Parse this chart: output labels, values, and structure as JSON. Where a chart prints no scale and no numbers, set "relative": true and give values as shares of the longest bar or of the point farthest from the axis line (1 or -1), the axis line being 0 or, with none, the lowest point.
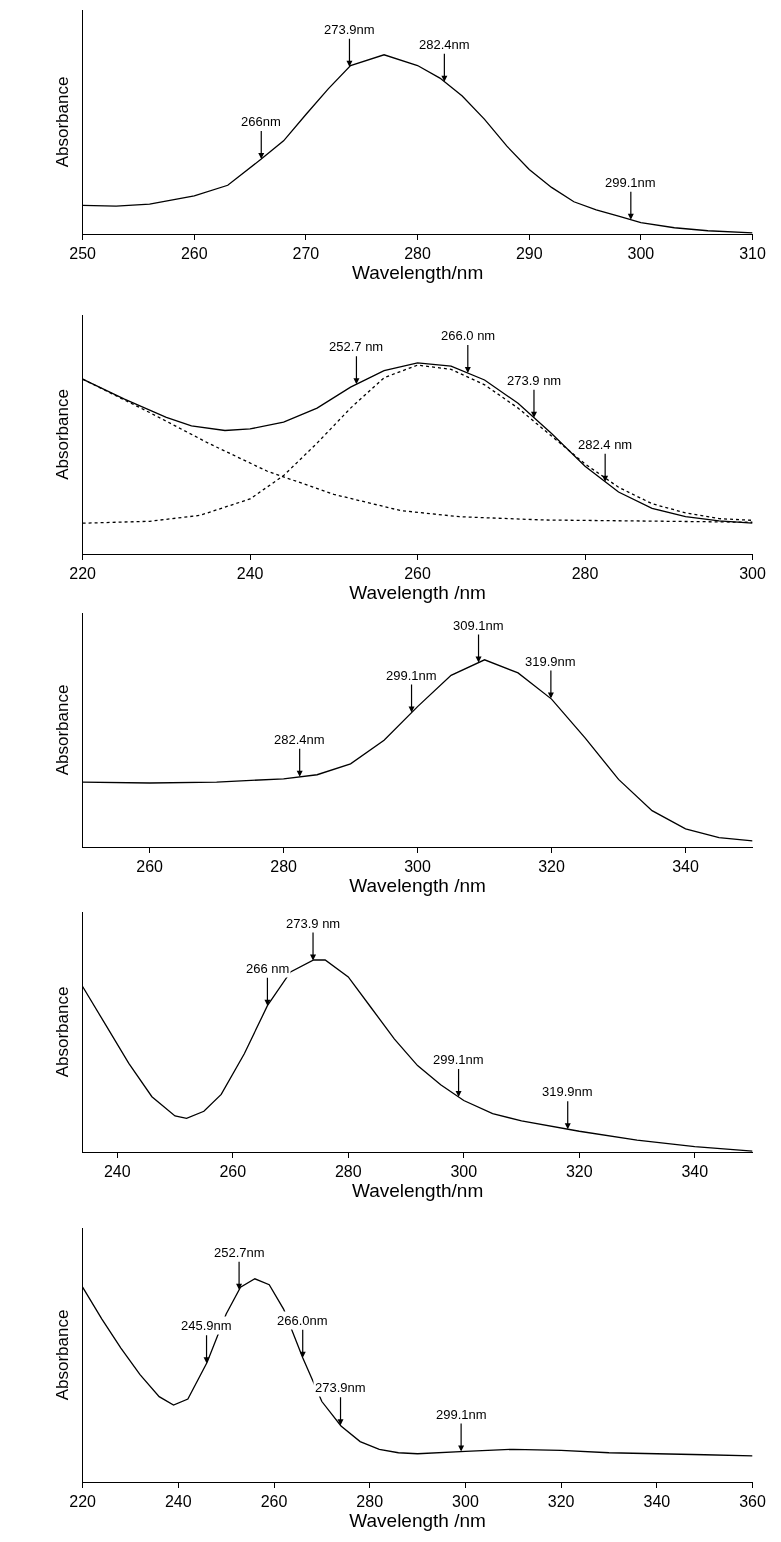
{
  "chart_data": [
    {
      "type": "line",
      "xlabel": "Wavelength/nm",
      "ylabel": "Absorbance",
      "relative": true,
      "xlim": [
        250,
        310
      ],
      "xticks": [
        250,
        260,
        270,
        280,
        290,
        300,
        310
      ],
      "series": [
        {
          "color": "#000000",
          "line_style": "solid",
          "x": [
            250,
            253,
            256,
            260,
            263,
            266,
            268,
            270,
            272,
            274,
            277,
            280,
            282,
            284,
            286,
            288,
            290,
            292,
            294,
            296,
            298,
            300,
            303,
            306,
            310
          ],
          "values": [
            0.16,
            0.155,
            0.167,
            0.213,
            0.272,
            0.418,
            0.52,
            0.667,
            0.81,
            0.94,
            1.0,
            0.94,
            0.87,
            0.77,
            0.64,
            0.49,
            0.36,
            0.26,
            0.18,
            0.135,
            0.1,
            0.064,
            0.035,
            0.018,
            0.006
          ]
        }
      ],
      "annotations": [
        {
          "text": "266nm",
          "x": 266,
          "y": 0.418
        },
        {
          "text": "273.9nm",
          "x": 273.9,
          "y": 0.933
        },
        {
          "text": "282.4nm",
          "x": 282.4,
          "y": 0.85
        },
        {
          "text": "299.1nm",
          "x": 299.1,
          "y": 0.08
        }
      ]
    },
    {
      "type": "line",
      "xlabel": "Wavelength /nm",
      "ylabel": "Absorbance",
      "relative": true,
      "xlim": [
        220,
        300
      ],
      "xticks": [
        220,
        240,
        260,
        280,
        300
      ],
      "series": [
        {
          "color": "#000000",
          "line_style": "solid",
          "x": [
            220,
            225,
            230,
            233,
            237,
            240,
            244,
            248,
            252,
            256,
            260,
            264,
            268,
            272,
            276,
            280,
            284,
            288,
            292,
            296,
            300
          ],
          "values": [
            0.915,
            0.81,
            0.715,
            0.67,
            0.646,
            0.654,
            0.69,
            0.763,
            0.873,
            0.959,
            1.0,
            0.983,
            0.91,
            0.788,
            0.63,
            0.459,
            0.324,
            0.239,
            0.195,
            0.173,
            0.161
          ]
        },
        {
          "color": "#000000",
          "line_style": "dotted",
          "x": [
            220,
            228,
            235,
            242,
            250,
            258,
            265,
            275,
            290,
            300
          ],
          "values": [
            0.915,
            0.74,
            0.58,
            0.434,
            0.312,
            0.227,
            0.195,
            0.178,
            0.171,
            0.166
          ]
        },
        {
          "color": "#000000",
          "line_style": "dotted",
          "x": [
            220,
            228,
            234,
            240,
            244,
            248,
            252,
            256,
            260,
            264,
            268,
            272,
            276,
            280,
            284,
            288,
            292,
            296,
            300
          ],
          "values": [
            0.161,
            0.171,
            0.202,
            0.288,
            0.41,
            0.58,
            0.763,
            0.922,
            0.988,
            0.966,
            0.885,
            0.763,
            0.617,
            0.471,
            0.349,
            0.263,
            0.215,
            0.185,
            0.176
          ]
        }
      ],
      "annotations": [
        {
          "text": "252.7 nm",
          "x": 252.7,
          "y": 0.888
        },
        {
          "text": "266.0 nm",
          "x": 266.0,
          "y": 0.946
        },
        {
          "text": "273.9 nm",
          "x": 273.9,
          "y": 0.713
        },
        {
          "text": "282.4 nm",
          "x": 282.4,
          "y": 0.378
        }
      ]
    },
    {
      "type": "line",
      "xlabel": "Wavelength /nm",
      "ylabel": "Absorbance",
      "relative": true,
      "xlim": [
        250,
        350
      ],
      "xticks": [
        260,
        280,
        300,
        320,
        340
      ],
      "series": [
        {
          "color": "#000000",
          "line_style": "solid",
          "x": [
            250,
            260,
            270,
            280,
            285,
            290,
            295,
            300,
            305,
            310,
            315,
            320,
            325,
            330,
            335,
            340,
            345,
            350
          ],
          "values": [
            0.347,
            0.342,
            0.347,
            0.364,
            0.386,
            0.444,
            0.57,
            0.75,
            0.917,
            1.0,
            0.93,
            0.79,
            0.583,
            0.361,
            0.194,
            0.097,
            0.05,
            0.033
          ]
        }
      ],
      "annotations": [
        {
          "text": "282.4nm",
          "x": 282.4,
          "y": 0.375
        },
        {
          "text": "299.1nm",
          "x": 299.1,
          "y": 0.718
        },
        {
          "text": "309.1nm",
          "x": 309.1,
          "y": 0.985
        },
        {
          "text": "319.9nm",
          "x": 319.9,
          "y": 0.793
        }
      ]
    },
    {
      "type": "line",
      "xlabel": "Wavelength/nm",
      "ylabel": "Absorbance",
      "relative": true,
      "xlim": [
        234,
        350
      ],
      "xticks": [
        240,
        260,
        280,
        300,
        320,
        340
      ],
      "series": [
        {
          "color": "#000000",
          "line_style": "solid",
          "x": [
            234,
            238,
            242,
            246,
            250,
            252,
            255,
            258,
            262,
            266,
            270,
            274,
            276,
            280,
            284,
            288,
            292,
            296,
            300,
            305,
            310,
            320,
            330,
            340,
            350
          ],
          "values": [
            0.862,
            0.662,
            0.462,
            0.288,
            0.188,
            0.175,
            0.212,
            0.3,
            0.512,
            0.762,
            0.938,
            1.0,
            1.0,
            0.912,
            0.75,
            0.588,
            0.45,
            0.35,
            0.268,
            0.2,
            0.162,
            0.108,
            0.062,
            0.028,
            0.005
          ]
        }
      ],
      "annotations": [
        {
          "text": "266 nm",
          "x": 266,
          "y": 0.762
        },
        {
          "text": "273.9 nm",
          "x": 273.9,
          "y": 0.997
        },
        {
          "text": "299.1nm",
          "x": 299.1,
          "y": 0.286
        },
        {
          "text": "319.9nm",
          "x": 318,
          "y": 0.119
        }
      ]
    },
    {
      "type": "line",
      "xlabel": "Wavelength /nm",
      "ylabel": "Absorbance",
      "relative": true,
      "xlim": [
        220,
        360
      ],
      "xticks": [
        220,
        240,
        260,
        280,
        300,
        320,
        340,
        360
      ],
      "series": [
        {
          "color": "#000000",
          "line_style": "solid",
          "x": [
            220,
            224,
            228,
            232,
            236,
            239,
            242,
            246,
            250,
            253,
            256,
            259,
            262,
            266,
            270,
            274,
            278,
            282,
            286,
            290,
            300,
            310,
            320,
            330,
            340,
            350,
            360
          ],
          "values": [
            0.959,
            0.803,
            0.659,
            0.528,
            0.42,
            0.379,
            0.408,
            0.588,
            0.827,
            0.959,
            1.0,
            0.971,
            0.851,
            0.612,
            0.396,
            0.276,
            0.199,
            0.161,
            0.144,
            0.139,
            0.151,
            0.161,
            0.156,
            0.144,
            0.139,
            0.134,
            0.129
          ]
        }
      ],
      "annotations": [
        {
          "text": "245.9nm",
          "x": 245.9,
          "y": 0.584
        },
        {
          "text": "252.7nm",
          "x": 252.7,
          "y": 0.946
        },
        {
          "text": "266.0nm",
          "x": 266.0,
          "y": 0.612
        },
        {
          "text": "273.9nm",
          "x": 273.9,
          "y": 0.279
        },
        {
          "text": "299.1nm",
          "x": 299.1,
          "y": 0.15
        }
      ]
    }
  ]
}
